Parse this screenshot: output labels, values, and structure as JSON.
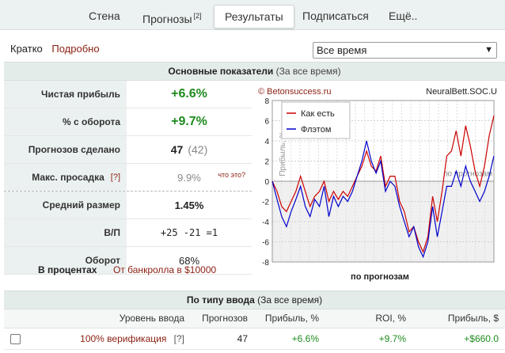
{
  "nav": {
    "tabs": [
      {
        "label": "Стена"
      },
      {
        "label": "Прогнозы",
        "badge": "[2]"
      },
      {
        "label": "Результаты"
      },
      {
        "label": "Подписаться"
      },
      {
        "label": "Ещё.."
      }
    ]
  },
  "view": {
    "brief": "Кратко",
    "detailed": "Подробно"
  },
  "period": {
    "selected": "Все время"
  },
  "main_panel": {
    "title": "Основные показатели",
    "subtitle": "(За все время)"
  },
  "stats": [
    {
      "label": "Чистая прибыль",
      "value": "+6.6%"
    },
    {
      "label": "% с оборота",
      "value": "+9.7%"
    },
    {
      "label": "Прогнозов сделано",
      "value": "47",
      "secondary": "(42)"
    },
    {
      "label": "Макс. просадка",
      "qmark": "[?]",
      "value": "9.9%",
      "link": "что это?"
    },
    {
      "label": "Средний размер",
      "value": "1.45%"
    },
    {
      "label": "В/П",
      "value": "+25 -21 =1"
    },
    {
      "label": "Оборот",
      "value": "68%"
    }
  ],
  "percent_row": {
    "label": "В процентах",
    "note": "От банкролла в $10000"
  },
  "chart_data": {
    "type": "line",
    "watermark_left": "© Betonsuccess.ru",
    "watermark_right": "NeuralBett.SOC.U",
    "xlabel": "по прогнозам",
    "ylabel": "Прибыль, %",
    "inner_label": "по прогнозам",
    "ylim": [
      -8,
      8
    ],
    "yticks": [
      -8,
      -6,
      -4,
      -2,
      0,
      2,
      4,
      6,
      8
    ],
    "x": [
      0,
      1,
      2,
      3,
      4,
      5,
      6,
      7,
      8,
      9,
      10,
      11,
      12,
      13,
      14,
      15,
      16,
      17,
      18,
      19,
      20,
      21,
      22,
      23,
      24,
      25,
      26,
      27,
      28,
      29,
      30,
      31,
      32,
      33,
      34,
      35,
      36,
      37,
      38,
      39,
      40,
      41,
      42,
      43,
      44,
      45,
      46,
      47
    ],
    "series": [
      {
        "name": "Как есть",
        "color": "#cc0000",
        "values": [
          0,
          -1,
          -2.5,
          -3,
          -2,
          -1,
          0.5,
          -1,
          -2.5,
          -1.5,
          -1,
          0,
          -2,
          -1,
          -1.8,
          -1,
          -1.5,
          -0.5,
          0.5,
          1.5,
          3,
          1.5,
          1,
          2.5,
          -0.5,
          0.5,
          0.5,
          -2,
          -3,
          -5,
          -4.5,
          -6,
          -7,
          -5.5,
          -1.5,
          -4,
          -1,
          2.5,
          3,
          5,
          2.5,
          5.5,
          3.5,
          1,
          -0.5,
          1.5,
          4.5,
          6.5
        ]
      },
      {
        "name": "Флэтом",
        "color": "#0000cc",
        "values": [
          0,
          -1.8,
          -3.5,
          -4.5,
          -3,
          -1.8,
          -0.5,
          -2.5,
          -3.5,
          -1.8,
          -2.5,
          -0.5,
          -3.5,
          -1.5,
          -2.5,
          -1.5,
          -2,
          -1,
          0.5,
          2,
          4,
          2,
          0.8,
          2,
          -1,
          0,
          -0.5,
          -2.5,
          -4,
          -5.5,
          -4.5,
          -6.5,
          -7.5,
          -6,
          -2.5,
          -5.5,
          -3,
          -0.5,
          -0.5,
          1,
          -0.5,
          1.5,
          0,
          -1,
          -2,
          -1,
          0.5,
          2.5
        ]
      }
    ]
  },
  "bottom_panel": {
    "title": "По типу ввода",
    "subtitle": "(За все время)"
  },
  "type_table": {
    "headers": [
      "Уровень ввода",
      "Прогнозов",
      "Прибыль, %",
      "ROI, %",
      "Прибыль, $"
    ],
    "rows": [
      {
        "level": "100% верификация",
        "qmark": "[?]",
        "forecasts": "47",
        "profit_pct": "+6.6%",
        "roi": "+9.7%",
        "profit_usd": "+$660.0"
      }
    ]
  }
}
